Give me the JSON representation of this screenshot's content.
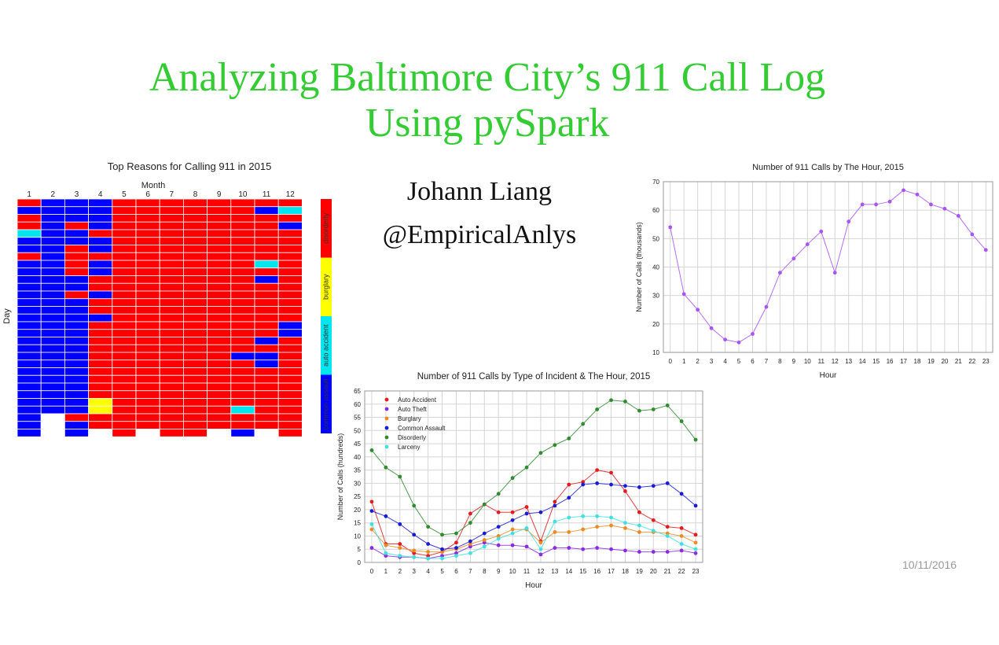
{
  "slide": {
    "title_line1": "Analyzing Baltimore City’s 911 Call Log",
    "title_line2": "Using pySpark",
    "author": "Johann Liang",
    "handle": "@EmpiricalAnlys",
    "date": "10/11/2016"
  },
  "chart_data": [
    {
      "type": "heatmap",
      "title": "Top Reasons for Calling 911 in 2015",
      "xlabel": "Month",
      "ylabel": "Day",
      "x_categories": [
        "1",
        "2",
        "3",
        "4",
        "5",
        "6",
        "7",
        "8",
        "9",
        "10",
        "11",
        "12"
      ],
      "rows": 31,
      "legend": [
        {
          "label": "disorderly",
          "color": "#ff0000"
        },
        {
          "label": "burglary",
          "color": "#ffff00"
        },
        {
          "label": "auto accident",
          "color": "#00e5ee"
        },
        {
          "label": "common assault",
          "color": "#0000ff"
        }
      ],
      "color_codes": {
        "D": "#ff0000",
        "B": "#ffff00",
        "A": "#00e5ee",
        "C": "#0000ff",
        "N": "#ffffff"
      },
      "cells_by_day": [
        "DCCCDDDDDDDD",
        "CCCCDDDDDDCA",
        "DCCCDDDDDDDD",
        "DCDCDDDDDDDC",
        "ACCDDDDDDDDD",
        "CCCCDDDDDDDD",
        "CCDCDDDDDDDD",
        "DCDDDDDDDDDD",
        "CCDCDDDDDDAD",
        "CCDCDDDDDDDD",
        "CCCDDDDDDDCD",
        "CCCDDDDDDDDD",
        "CCDCDDDDDDDD",
        "CCCDDDDDDDDD",
        "CCCDDDDDDDDD",
        "CCCCDDDDDDDD",
        "CCCDDDDDDDDC",
        "CCCDDDDDDDDC",
        "CCCDDDDDDDCD",
        "CCCDDDDDDDDD",
        "CCCDDDDDDCCD",
        "CCCDDDDDDDCD",
        "CCCDDDDDDDDD",
        "CCCDDDDDDDDD",
        "CCCDDDDDDDDD",
        "CCCDDDDDDDDD",
        "CCCBDDDDDDDD",
        "CCCBDDDDDADD",
        "CNDDDDDDDDDD",
        "CNCDDDDDDDDD",
        "CNCNDNDDNCND"
      ]
    },
    {
      "type": "line",
      "title": "Number of 911 Calls by The Hour, 2015",
      "xlabel": "Hour",
      "ylabel": "Number of Calls (thousands)",
      "x": [
        0,
        1,
        2,
        3,
        4,
        5,
        6,
        7,
        8,
        9,
        10,
        11,
        12,
        13,
        14,
        15,
        16,
        17,
        18,
        19,
        20,
        21,
        22,
        23
      ],
      "ylim": [
        10,
        70
      ],
      "yticks": [
        10,
        20,
        30,
        40,
        50,
        60,
        70
      ],
      "grid": true,
      "series": [
        {
          "color": "#a855f7",
          "values": [
            54,
            30.5,
            25,
            18.5,
            14.5,
            13.5,
            16.5,
            26,
            38,
            43,
            48,
            52.5,
            38,
            56,
            62,
            62,
            63,
            67,
            65.5,
            62,
            60.5,
            58,
            51.5,
            46
          ]
        }
      ]
    },
    {
      "type": "line",
      "title": "Number of 911 Calls by Type of Incident & The Hour, 2015",
      "xlabel": "Hour",
      "ylabel": "Number of Calls (hundreds)",
      "x": [
        0,
        1,
        2,
        3,
        4,
        5,
        6,
        7,
        8,
        9,
        10,
        11,
        12,
        13,
        14,
        15,
        16,
        17,
        18,
        19,
        20,
        21,
        22,
        23
      ],
      "ylim": [
        0,
        65
      ],
      "yticks": [
        0,
        5,
        10,
        15,
        20,
        25,
        30,
        35,
        40,
        45,
        50,
        55,
        60,
        65
      ],
      "grid": true,
      "legend_position": "top-left",
      "series": [
        {
          "name": "Auto Accident",
          "color": "#e41a1c",
          "values": [
            23,
            7,
            7,
            3.5,
            2.5,
            4,
            7.5,
            18.5,
            22,
            19,
            19,
            21,
            8,
            23,
            29.5,
            30.5,
            35,
            34,
            27,
            19,
            16,
            13.5,
            13,
            10.5
          ]
        },
        {
          "name": "Auto Theft",
          "color": "#8a2be2",
          "values": [
            5.5,
            2.5,
            2,
            2,
            1.5,
            2.5,
            3.5,
            6,
            7.5,
            6.5,
            6.5,
            6,
            3,
            5.5,
            5.5,
            5,
            5.5,
            5,
            4.5,
            4,
            4,
            4,
            4.5,
            3.5
          ]
        },
        {
          "name": "Burglary",
          "color": "#ee8a22",
          "values": [
            12.5,
            6.5,
            5.5,
            4.5,
            4,
            4,
            5,
            7,
            8.5,
            10,
            12.5,
            12.5,
            7.5,
            11.5,
            11.5,
            12.5,
            13.5,
            14,
            13,
            11.5,
            11.5,
            11,
            10,
            7.5
          ]
        },
        {
          "name": "Common Assault",
          "color": "#1a1ad6",
          "values": [
            19.5,
            17.5,
            14.5,
            10.5,
            7,
            5,
            5.5,
            8,
            11,
            13.5,
            16,
            18.5,
            19,
            21.5,
            24.5,
            29.5,
            30,
            29.5,
            29,
            28.5,
            29,
            30,
            26,
            21.5
          ]
        },
        {
          "name": "Disorderly",
          "color": "#2e8b2e",
          "values": [
            42.5,
            36,
            32.5,
            21.5,
            13.5,
            10.5,
            11,
            15,
            22,
            26,
            32,
            36,
            41.5,
            44.5,
            47,
            52.5,
            58,
            61.5,
            61,
            57.5,
            58,
            59.5,
            53.5,
            46.5
          ]
        },
        {
          "name": "Larceny",
          "color": "#40e0e0",
          "values": [
            14.5,
            3.5,
            2.5,
            2,
            1.5,
            1.5,
            2.5,
            3.5,
            6,
            9,
            11,
            13,
            5,
            15.5,
            17,
            17.5,
            17.5,
            17,
            15,
            14,
            12,
            10,
            7,
            5
          ]
        }
      ]
    }
  ]
}
